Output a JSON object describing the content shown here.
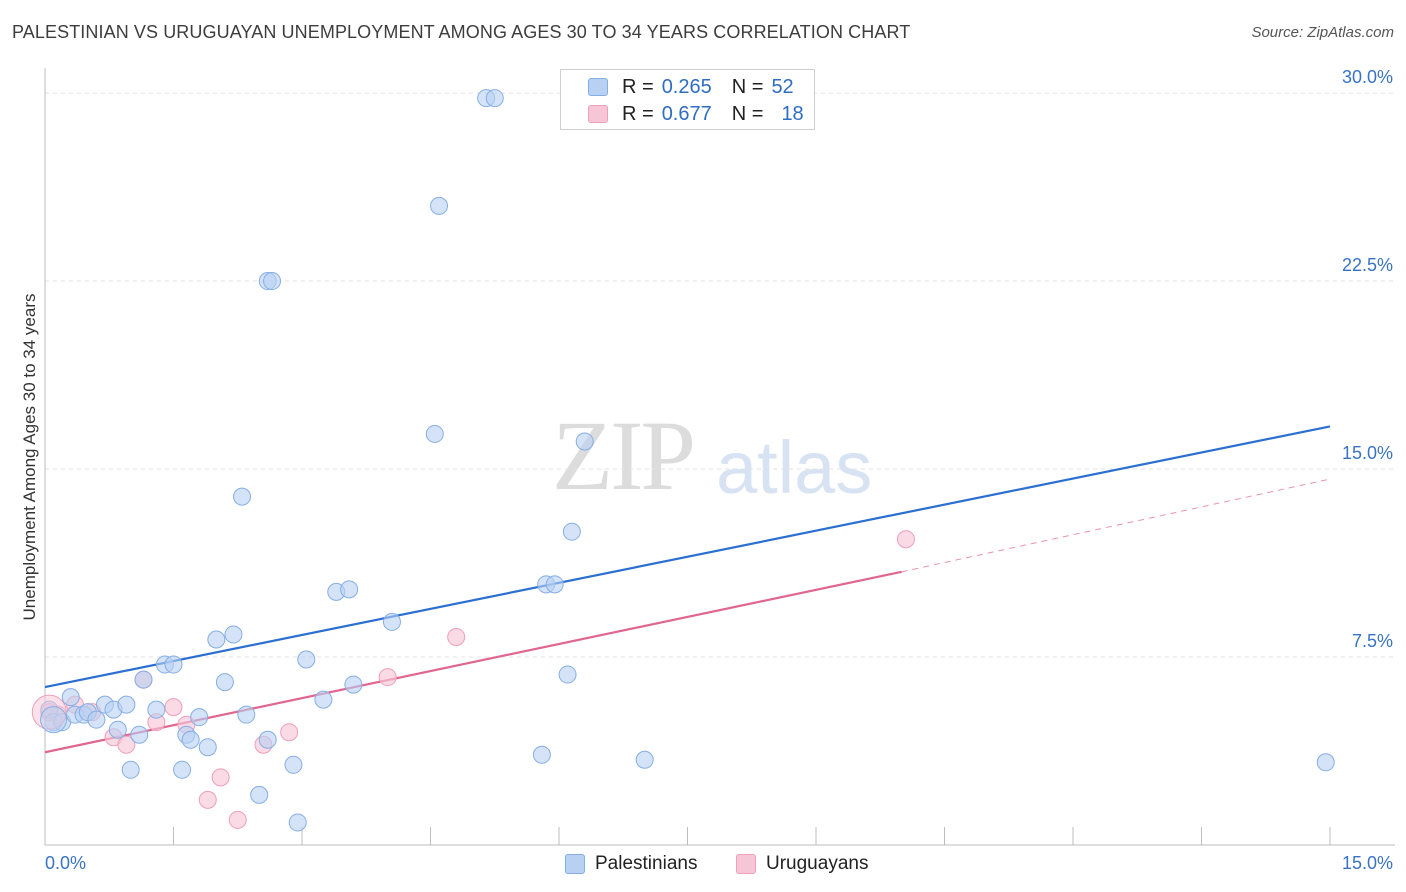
{
  "title": "PALESTINIAN VS URUGUAYAN UNEMPLOYMENT AMONG AGES 30 TO 34 YEARS CORRELATION CHART",
  "source": "Source: ZipAtlas.com",
  "watermark": {
    "zip": "ZIP",
    "atlas": "atlas"
  },
  "colors": {
    "blue_fill": "#b8d1f2",
    "blue_stroke": "#86aee6",
    "blue_line": "#2a6fd1",
    "pink_fill": "#f7c6d6",
    "pink_stroke": "#ee9fb9",
    "pink_line": "#e0668f",
    "axis_text": "#3a73c4",
    "grid": "#e2e2e2"
  },
  "legend": {
    "rows": [
      {
        "r_label": "R =",
        "r_value": "0.265",
        "n_label": "N =",
        "n_value": "52"
      },
      {
        "r_label": "R =",
        "r_value": "0.677",
        "n_label": "N =",
        "n_value": "18"
      }
    ]
  },
  "bottom_legend": {
    "palestinians": "Palestinians",
    "uruguayans": "Uruguayans"
  },
  "chart_data": {
    "type": "scatter",
    "title": "PALESTINIAN VS URUGUAYAN UNEMPLOYMENT AMONG AGES 30 TO 34 YEARS CORRELATION CHART",
    "xlabel": "",
    "ylabel": "Unemployment Among Ages 30 to 34 years",
    "xlim": [
      0,
      15
    ],
    "ylim": [
      0,
      31
    ],
    "x_tick_labels": [
      "0.0%",
      "15.0%"
    ],
    "y_ticks": [
      7.5,
      15.0,
      22.5,
      30.0
    ],
    "y_tick_labels": [
      "7.5%",
      "15.0%",
      "22.5%",
      "30.0%"
    ],
    "grid": true,
    "series": [
      {
        "name": "Palestinians",
        "r": 0.265,
        "n": 52,
        "points": [
          [
            0.05,
            5.4
          ],
          [
            0.1,
            4.9
          ],
          [
            0.2,
            4.9
          ],
          [
            0.3,
            5.9
          ],
          [
            0.35,
            5.2
          ],
          [
            0.45,
            5.2
          ],
          [
            0.5,
            5.3
          ],
          [
            0.6,
            5.0
          ],
          [
            0.7,
            5.6
          ],
          [
            0.8,
            5.4
          ],
          [
            0.85,
            4.6
          ],
          [
            0.95,
            5.6
          ],
          [
            1.1,
            4.4
          ],
          [
            1.15,
            6.6
          ],
          [
            1.3,
            5.4
          ],
          [
            1.4,
            7.2
          ],
          [
            1.5,
            7.2
          ],
          [
            1.65,
            4.4
          ],
          [
            1.7,
            4.2
          ],
          [
            1.8,
            5.1
          ],
          [
            1.9,
            3.9
          ],
          [
            2.0,
            8.2
          ],
          [
            2.1,
            6.5
          ],
          [
            2.2,
            8.4
          ],
          [
            2.3,
            13.9
          ],
          [
            2.35,
            5.2
          ],
          [
            2.5,
            2.0
          ],
          [
            2.6,
            4.2
          ],
          [
            2.6,
            22.5
          ],
          [
            2.65,
            22.5
          ],
          [
            2.9,
            3.2
          ],
          [
            2.95,
            0.9
          ],
          [
            3.05,
            7.4
          ],
          [
            3.25,
            5.8
          ],
          [
            3.4,
            10.1
          ],
          [
            3.55,
            10.2
          ],
          [
            3.6,
            6.4
          ],
          [
            4.05,
            8.9
          ],
          [
            4.55,
            16.4
          ],
          [
            4.6,
            25.5
          ],
          [
            5.15,
            29.8
          ],
          [
            5.25,
            29.8
          ],
          [
            5.8,
            3.6
          ],
          [
            5.85,
            10.4
          ],
          [
            5.95,
            10.4
          ],
          [
            6.1,
            6.8
          ],
          [
            6.15,
            12.5
          ],
          [
            6.3,
            16.1
          ],
          [
            7.0,
            3.4
          ],
          [
            14.95,
            3.3
          ],
          [
            1.0,
            3.0
          ],
          [
            1.6,
            3.0
          ]
        ],
        "trend": {
          "x": [
            0,
            15
          ],
          "y": [
            6.3,
            16.7
          ]
        }
      },
      {
        "name": "Uruguayans",
        "r": 0.677,
        "n": 18,
        "points": [
          [
            0.05,
            5.3
          ],
          [
            0.35,
            5.6
          ],
          [
            0.55,
            5.3
          ],
          [
            0.8,
            4.3
          ],
          [
            0.95,
            4.0
          ],
          [
            1.15,
            6.6
          ],
          [
            1.3,
            4.9
          ],
          [
            1.5,
            5.5
          ],
          [
            1.65,
            4.8
          ],
          [
            1.9,
            1.8
          ],
          [
            2.05,
            2.7
          ],
          [
            2.25,
            1.0
          ],
          [
            2.55,
            4.0
          ],
          [
            2.85,
            4.5
          ],
          [
            4.0,
            6.7
          ],
          [
            4.8,
            8.3
          ],
          [
            10.05,
            12.2
          ],
          [
            0.15,
            5.2
          ]
        ],
        "trend": {
          "x": [
            0,
            10.0
          ],
          "y": [
            3.7,
            10.9
          ]
        },
        "trend_extension": {
          "x": [
            10.0,
            15.0
          ],
          "y": [
            10.9,
            14.6
          ]
        }
      }
    ]
  }
}
